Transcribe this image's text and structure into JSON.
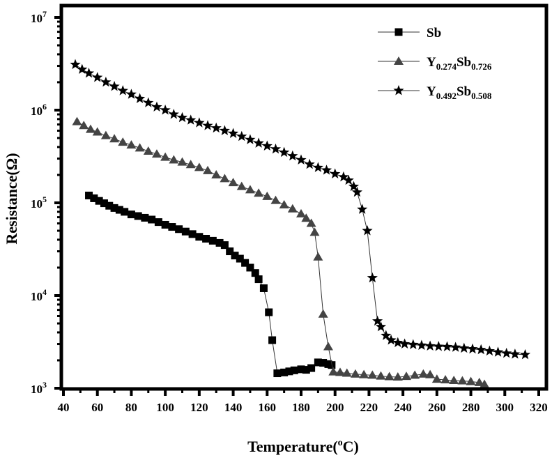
{
  "chart_data": {
    "type": "line",
    "title": "",
    "xlabel": "Temperature(",
    "xlabel_sup": "o",
    "xlabel_end": "C)",
    "ylabel": "Resistance(Ω)",
    "xlim": [
      40,
      320
    ],
    "ylim": [
      1000,
      10000000
    ],
    "yscale": "log",
    "xticks": [
      40,
      60,
      80,
      100,
      120,
      140,
      160,
      180,
      200,
      220,
      240,
      260,
      280,
      300,
      320
    ],
    "yticks": [
      {
        "value": 1000,
        "base": "10",
        "exp": "3"
      },
      {
        "value": 10000,
        "base": "10",
        "exp": "4"
      },
      {
        "value": 100000,
        "base": "10",
        "exp": "5"
      },
      {
        "value": 1000000,
        "base": "10",
        "exp": "6"
      },
      {
        "value": 10000000,
        "base": "10",
        "exp": "7"
      }
    ],
    "grid": false,
    "legend_position": "top-right",
    "series": [
      {
        "name": "Sb",
        "legend": [
          {
            "t": "Sb",
            "sub": false
          }
        ],
        "marker": "square",
        "color": "#000000",
        "x": [
          55,
          58,
          61,
          64,
          67,
          70,
          73,
          76,
          80,
          84,
          88,
          92,
          96,
          100,
          104,
          108,
          112,
          116,
          120,
          124,
          128,
          132,
          135,
          138,
          141,
          144,
          147,
          150,
          153,
          155,
          158,
          161,
          163,
          166,
          170,
          173,
          176,
          180,
          183,
          186,
          190,
          193,
          196,
          198
        ],
        "y": [
          120000,
          112000,
          105000,
          99000,
          93000,
          88000,
          84000,
          80000,
          75000,
          72000,
          69000,
          66000,
          62000,
          58000,
          55000,
          52000,
          49000,
          46000,
          43000,
          41000,
          39000,
          37000,
          35000,
          30000,
          27000,
          25000,
          22500,
          20000,
          17500,
          15000,
          12000,
          6600,
          3300,
          1450,
          1480,
          1520,
          1560,
          1600,
          1580,
          1650,
          1900,
          1880,
          1820,
          1780
        ]
      },
      {
        "name": "Y0.274Sb0.726",
        "legend": [
          {
            "t": "Y",
            "sub": false
          },
          {
            "t": "0.274",
            "sub": true
          },
          {
            "t": "Sb",
            "sub": false
          },
          {
            "t": "0.726",
            "sub": true
          }
        ],
        "marker": "triangle",
        "color": "#444444",
        "x": [
          48,
          52,
          56,
          60,
          65,
          70,
          75,
          80,
          85,
          90,
          95,
          100,
          105,
          110,
          115,
          120,
          125,
          130,
          135,
          140,
          145,
          150,
          155,
          160,
          165,
          170,
          175,
          180,
          183,
          186,
          188,
          190,
          193,
          196,
          199,
          203,
          207,
          212,
          217,
          222,
          227,
          232,
          237,
          242,
          247,
          252,
          256,
          260,
          265,
          270,
          275,
          280,
          285,
          288
        ],
        "y": [
          750000,
          680000,
          620000,
          580000,
          530000,
          490000,
          450000,
          420000,
          390000,
          360000,
          335000,
          310000,
          290000,
          275000,
          258000,
          240000,
          222000,
          200000,
          182000,
          165000,
          150000,
          138000,
          127000,
          117000,
          106000,
          95000,
          86000,
          76000,
          68000,
          60000,
          48000,
          26000,
          6300,
          2800,
          1500,
          1480,
          1450,
          1420,
          1400,
          1380,
          1350,
          1330,
          1320,
          1340,
          1380,
          1420,
          1400,
          1250,
          1230,
          1210,
          1200,
          1180,
          1150,
          1100
        ]
      },
      {
        "name": "Y0.492Sb0.508",
        "legend": [
          {
            "t": "Y",
            "sub": false
          },
          {
            "t": "0.492",
            "sub": true
          },
          {
            "t": "Sb",
            "sub": false
          },
          {
            "t": "0.508",
            "sub": true
          }
        ],
        "marker": "star",
        "color": "#000000",
        "x": [
          47,
          51,
          55,
          60,
          65,
          70,
          75,
          80,
          85,
          90,
          95,
          100,
          105,
          110,
          115,
          120,
          125,
          130,
          135,
          140,
          145,
          150,
          155,
          160,
          165,
          170,
          175,
          180,
          185,
          190,
          195,
          200,
          205,
          208,
          211,
          213,
          216,
          219,
          222,
          225,
          227,
          230,
          233,
          237,
          241,
          246,
          251,
          256,
          261,
          266,
          271,
          276,
          281,
          286,
          291,
          296,
          301,
          306,
          312
        ],
        "y": [
          3100000,
          2750000,
          2500000,
          2250000,
          2000000,
          1800000,
          1620000,
          1480000,
          1330000,
          1200000,
          1080000,
          1000000,
          900000,
          830000,
          780000,
          730000,
          680000,
          640000,
          600000,
          560000,
          520000,
          480000,
          440000,
          410000,
          380000,
          350000,
          320000,
          290000,
          260000,
          240000,
          225000,
          205000,
          190000,
          175000,
          150000,
          130000,
          85000,
          50000,
          15500,
          5300,
          4600,
          3700,
          3300,
          3100,
          3000,
          2950,
          2900,
          2850,
          2820,
          2800,
          2760,
          2700,
          2650,
          2600,
          2520,
          2450,
          2380,
          2330,
          2300
        ]
      }
    ]
  }
}
